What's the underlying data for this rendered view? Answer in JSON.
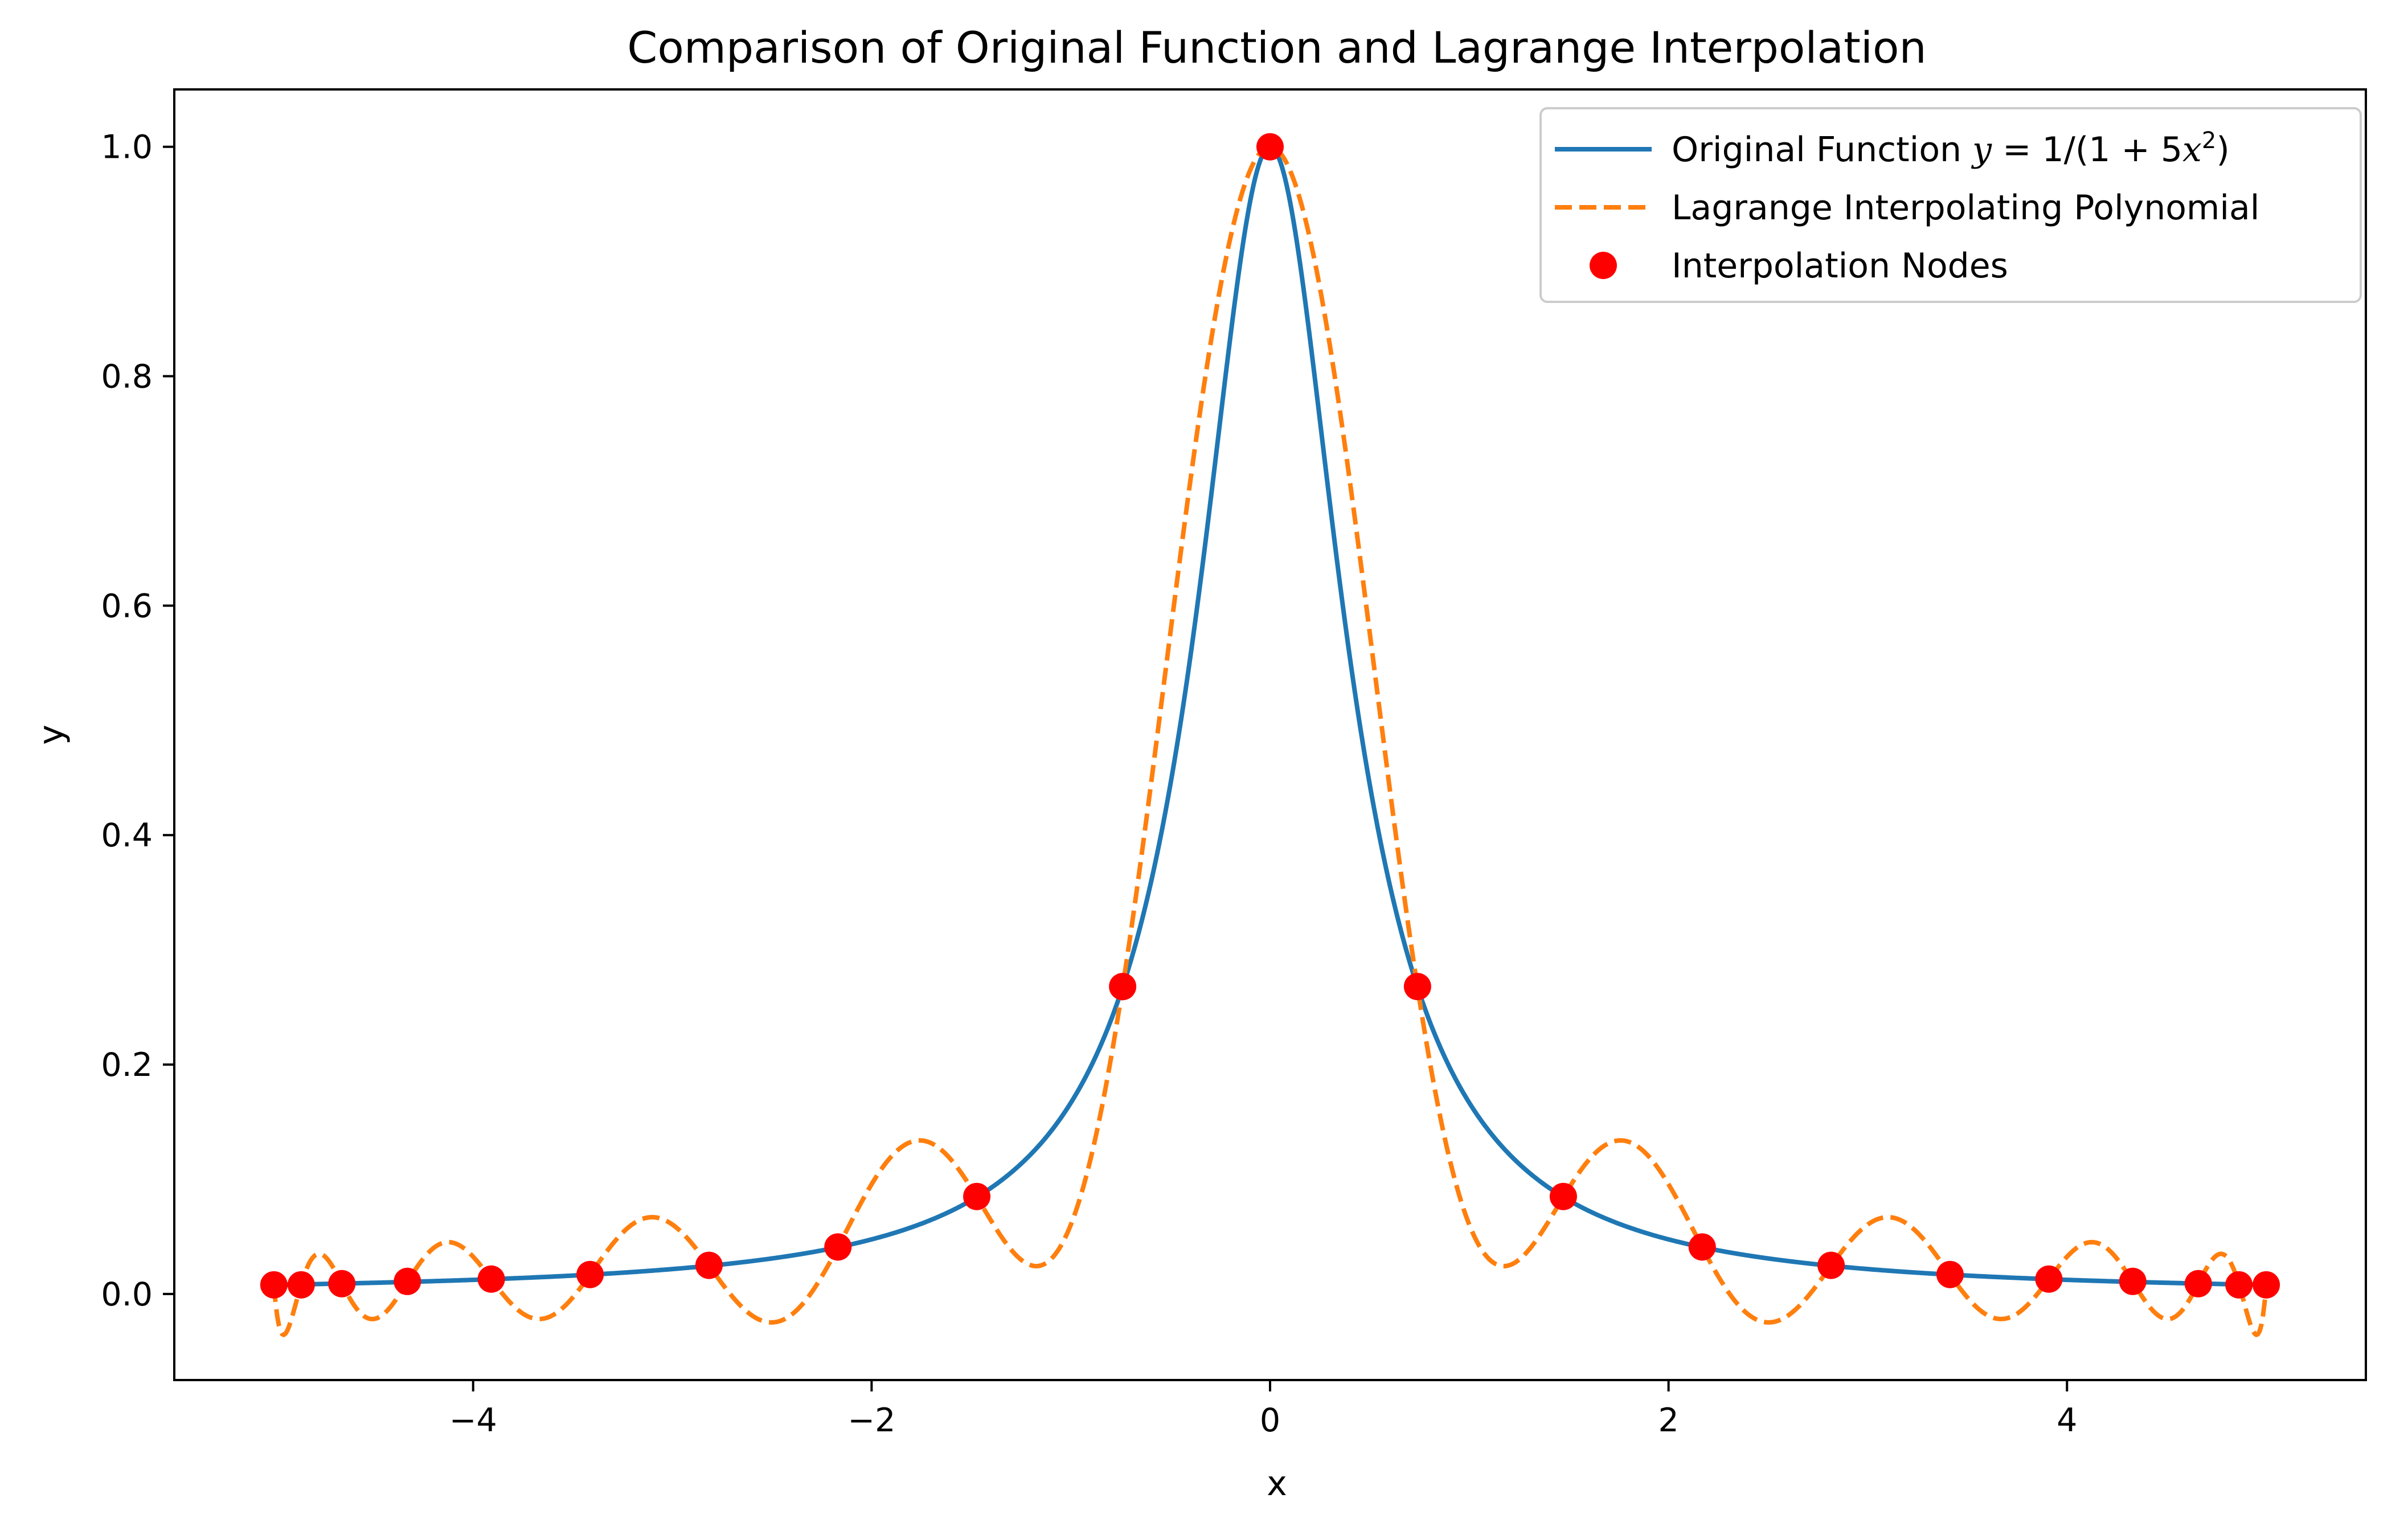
{
  "chart_data": {
    "type": "line",
    "title": "Comparison of Original Function and Lagrange Interpolation",
    "xlabel": "x",
    "ylabel": "y",
    "xlim": [
      -5.5,
      5.5
    ],
    "ylim": [
      -0.075,
      1.05
    ],
    "xticks": [
      -4,
      -2,
      0,
      2,
      4
    ],
    "xtick_labels": [
      "−4",
      "−2",
      "0",
      "2",
      "4"
    ],
    "yticks": [
      0.0,
      0.2,
      0.4,
      0.6,
      0.8,
      1.0
    ],
    "ytick_labels": [
      "0.0",
      "0.2",
      "0.4",
      "0.6",
      "0.8",
      "1.0"
    ],
    "grid": false,
    "legend_position": "top-right",
    "series": [
      {
        "name": "Original Function y = 1/(1 + 5x²)",
        "style": "solid",
        "color": "#1f77b4",
        "function": "1/(1+5x^2)"
      },
      {
        "name": "Lagrange Interpolating Polynomial",
        "style": "dashed",
        "color": "#ff7f0e"
      },
      {
        "name": "Interpolation Nodes",
        "style": "scatter",
        "color": "#ff0000",
        "x": [
          -5.0,
          -4.863,
          -4.659,
          -4.33,
          -3.909,
          -3.413,
          -2.816,
          -2.169,
          -1.472,
          -0.74,
          0.0,
          0.74,
          1.472,
          2.169,
          2.816,
          3.413,
          3.909,
          4.33,
          4.659,
          4.863,
          5.0
        ],
        "y": [
          0.008,
          0.008,
          0.009,
          0.011,
          0.013,
          0.017,
          0.025,
          0.041,
          0.085,
          0.268,
          1.0,
          0.268,
          0.085,
          0.041,
          0.025,
          0.017,
          0.013,
          0.011,
          0.009,
          0.008,
          0.008
        ]
      }
    ]
  }
}
